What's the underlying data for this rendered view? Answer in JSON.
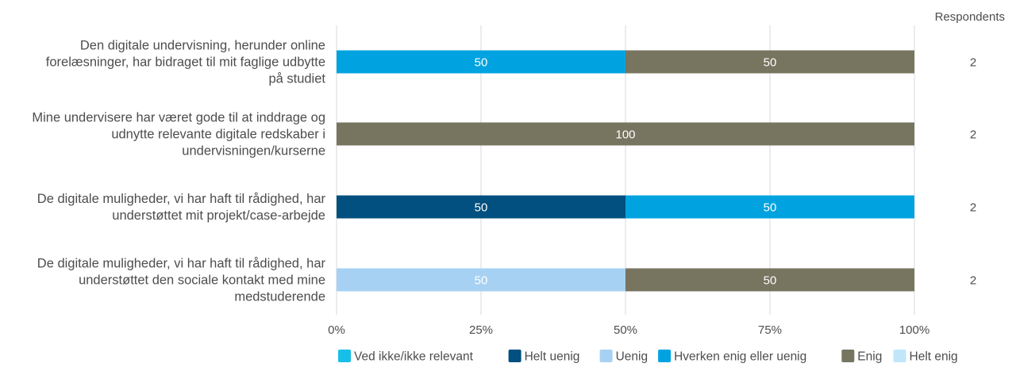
{
  "chart_data": {
    "type": "bar",
    "orientation": "horizontal",
    "stacked": true,
    "respondents_header": "Respondents",
    "x_ticks": [
      "0%",
      "25%",
      "50%",
      "75%",
      "100%"
    ],
    "xlim": [
      0,
      100
    ],
    "grid": true,
    "legend_position": "bottom",
    "categories": [
      [
        "Den digitale undervisning, herunder online",
        "forelæsninger, har bidraget til mit faglige udbytte",
        "på studiet"
      ],
      [
        "Mine undervisere har været gode til at inddrage og",
        "udnytte relevante digitale redskaber i",
        "undervisningen/kurserne"
      ],
      [
        "De digitale muligheder, vi har haft til rådighed, har",
        "understøttet mit projekt/case-arbejde"
      ],
      [
        "De digitale muligheder, vi har haft til rådighed, har",
        "understøttet den sociale kontakt med mine",
        "medstuderende"
      ]
    ],
    "respondents": [
      "2",
      "2",
      "2",
      "2"
    ],
    "series": [
      {
        "name": "Ved ikke/ikke relevant",
        "color": "#17bfe8",
        "values": [
          0,
          0,
          0,
          0
        ]
      },
      {
        "name": "Helt uenig",
        "color": "#02507f",
        "values": [
          0,
          0,
          50,
          0
        ]
      },
      {
        "name": "Uenig",
        "color": "#a7d1f2",
        "values": [
          0,
          0,
          0,
          50
        ]
      },
      {
        "name": "Hverken enig eller uenig",
        "color": "#00a3e0",
        "values": [
          50,
          0,
          50,
          0
        ]
      },
      {
        "name": "Enig",
        "color": "#777460",
        "values": [
          50,
          100,
          0,
          50
        ]
      },
      {
        "name": "Helt enig",
        "color": "#c2e6f9",
        "values": [
          0,
          0,
          0,
          0
        ]
      }
    ]
  }
}
